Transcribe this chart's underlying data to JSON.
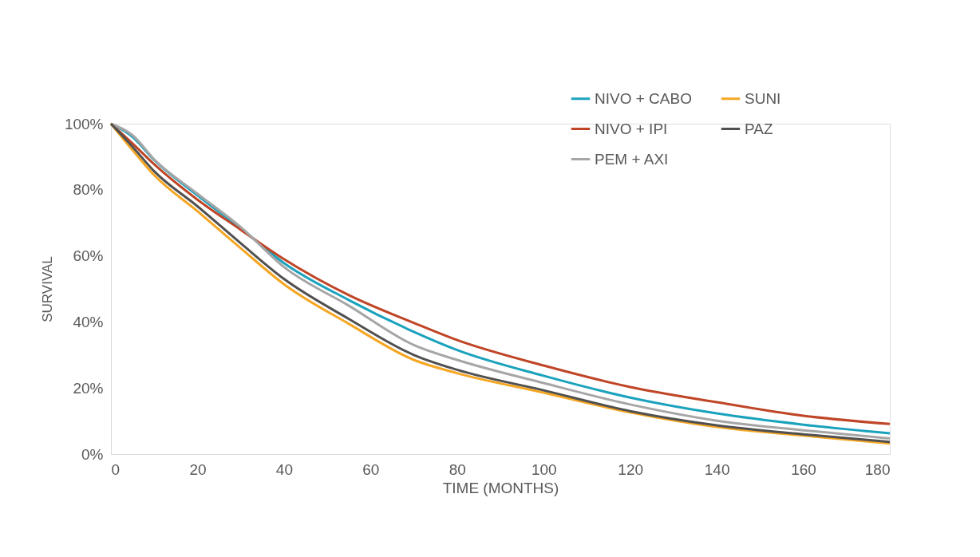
{
  "chart_data": {
    "type": "line",
    "xlabel": "TIME (MONTHS)",
    "ylabel": "SURVIVAL",
    "x": [
      0,
      5,
      10,
      20,
      30,
      40,
      55,
      70,
      80,
      100,
      120,
      140,
      160,
      180
    ],
    "series": [
      {
        "name": "NIVO + CABO",
        "color": "#1aa2bd",
        "values": [
          100,
          96,
          89,
          78.3,
          68.3,
          57.8,
          46.6,
          37,
          31.5,
          23.7,
          17.1,
          12.3,
          8.9,
          6.3
        ]
      },
      {
        "name": "NIVO + IPI",
        "color": "#bf4526",
        "values": [
          100,
          94,
          87.7,
          77,
          67.9,
          59,
          48.1,
          39.7,
          34.5,
          26.8,
          20.3,
          15.7,
          11.6,
          9.1
        ]
      },
      {
        "name": "PEM + AXI",
        "color": "#a6a6a6",
        "values": [
          100,
          96.5,
          89.2,
          78.8,
          68.7,
          56.6,
          44.9,
          33,
          28.5,
          21.5,
          15,
          10.1,
          7.2,
          4.7
        ]
      },
      {
        "name": "SUNI",
        "color": "#f5a623",
        "values": [
          100,
          92,
          84.4,
          73.5,
          62.3,
          51.4,
          39.4,
          28.5,
          24.5,
          18.6,
          12.6,
          8.2,
          5.6,
          3.2
        ]
      },
      {
        "name": "PAZ",
        "color": "#505050",
        "values": [
          100,
          93,
          85.6,
          75,
          63.8,
          53,
          40.9,
          30,
          25.5,
          19.3,
          13,
          8.7,
          6,
          3.7
        ]
      }
    ],
    "xlim": [
      0,
      180
    ],
    "xticks": [
      0,
      20,
      40,
      60,
      80,
      100,
      120,
      140,
      160,
      180
    ],
    "ylim": [
      0,
      100
    ],
    "yticks": [
      {
        "value": 0,
        "label": "0%"
      },
      {
        "value": 20,
        "label": "20%"
      },
      {
        "value": 40,
        "label": "40%"
      },
      {
        "value": 60,
        "label": "60%"
      },
      {
        "value": 80,
        "label": "80%"
      },
      {
        "value": 100,
        "label": "100%"
      }
    ],
    "grid": false,
    "legend": "top right",
    "marker": "none",
    "line_style": "solid"
  }
}
